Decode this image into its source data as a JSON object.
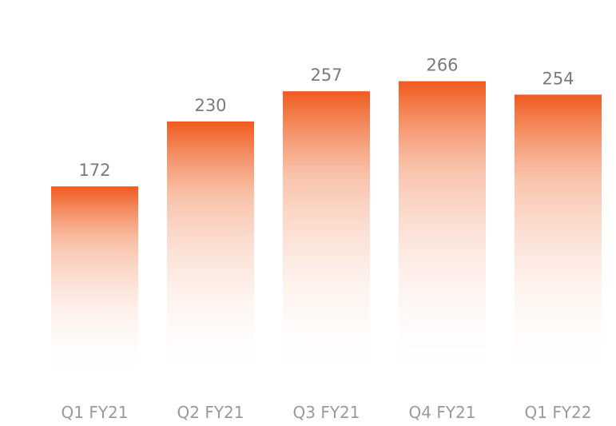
{
  "chart_data": {
    "type": "bar",
    "title": "",
    "xlabel": "",
    "ylabel": "",
    "categories": [
      "Q1 FY21",
      "Q2 FY21",
      "Q3 FY21",
      "Q4 FY21",
      "Q1 FY22"
    ],
    "values": [
      172,
      230,
      257,
      266,
      254
    ],
    "ylim": [
      0,
      300
    ],
    "grid": false,
    "legend": "none",
    "colors": {
      "bar_top": "#f05a1e",
      "bar_bottom": "#ffffff",
      "value_label": "#7a7a7a",
      "category_label": "#9a9a9a"
    }
  }
}
